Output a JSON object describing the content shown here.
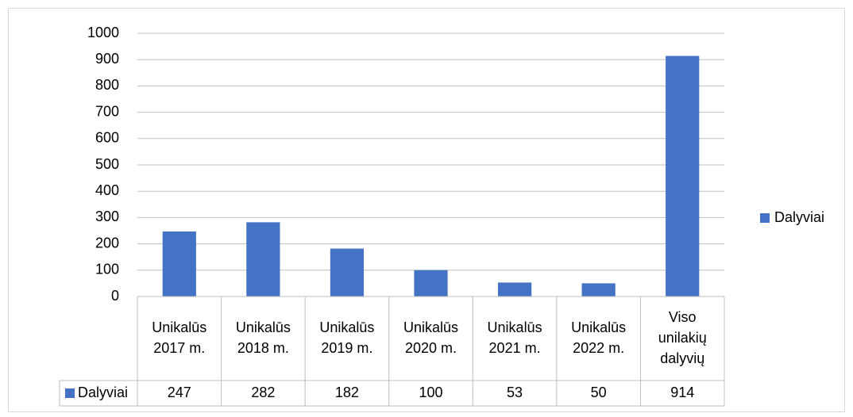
{
  "chart_data": {
    "type": "bar",
    "categories": [
      "Unikalūs 2017 m.",
      "Unikalūs 2018 m.",
      "Unikalūs 2019 m.",
      "Unikalūs 2020 m.",
      "Unikalūs 2021 m.",
      "Unikalūs 2022 m.",
      "Viso unilakių dalyvių"
    ],
    "series": [
      {
        "name": "Dalyviai",
        "color": "#4472c4",
        "values": [
          247,
          282,
          182,
          100,
          53,
          50,
          914
        ]
      }
    ],
    "ylim": [
      0,
      1000
    ],
    "yticks": [
      0,
      100,
      200,
      300,
      400,
      500,
      600,
      700,
      800,
      900,
      1000
    ],
    "grid": true,
    "legend": "right",
    "data_table": true
  }
}
